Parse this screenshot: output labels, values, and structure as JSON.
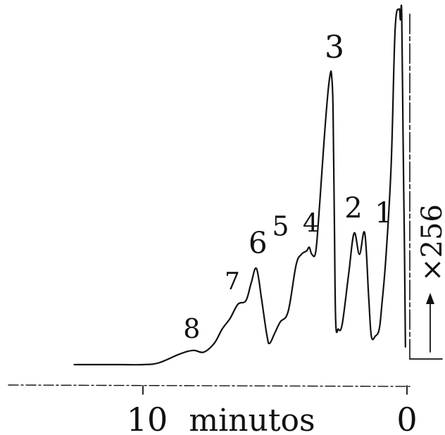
{
  "chart_data": {
    "type": "line",
    "xlabel": "minutos",
    "x_ticks": [
      {
        "value": 10,
        "label": "10"
      },
      {
        "value": 0,
        "label": "0"
      }
    ],
    "x_direction": "reversed",
    "sensitivity_label": "×256",
    "peaks": [
      {
        "label": "1",
        "x": 1.2,
        "y": 0.36
      },
      {
        "label": "2",
        "x": 1.6,
        "y": 0.37
      },
      {
        "label": "3",
        "x": 2.8,
        "y": 0.82
      },
      {
        "label": "4",
        "x": 3.7,
        "y": 0.33
      },
      {
        "label": "5",
        "x": 4.2,
        "y": 0.32
      },
      {
        "label": "6",
        "x": 5.7,
        "y": 0.27
      },
      {
        "label": "7",
        "x": 6.4,
        "y": 0.18
      },
      {
        "label": "8",
        "x": 8.1,
        "y": 0.04
      }
    ],
    "series": [
      {
        "x": [
          12.6,
          12.1,
          11.4,
          10.8,
          10.0,
          9.4,
          8.6,
          8.1,
          7.7,
          7.3,
          7.0,
          6.7,
          6.4,
          6.1,
          5.9,
          5.7,
          5.5,
          5.3,
          5.2,
          5.0,
          4.8,
          4.5,
          4.2,
          4.0,
          3.8,
          3.7,
          3.6,
          3.45,
          3.3,
          3.15,
          3.0,
          2.9,
          2.85,
          2.8,
          2.75,
          2.7,
          2.6,
          2.5,
          2.4,
          2.2,
          2.0,
          1.8,
          1.6,
          1.45,
          1.35,
          1.2,
          1.05,
          0.95,
          0.8,
          0.6,
          0.45,
          0.3,
          0.25,
          0.2,
          0.15,
          0.1,
          0.06
        ],
        "y": [
          0.0,
          0.0,
          0.0,
          0.0,
          0.0,
          0.005,
          0.03,
          0.04,
          0.035,
          0.06,
          0.1,
          0.13,
          0.17,
          0.18,
          0.23,
          0.27,
          0.18,
          0.08,
          0.06,
          0.09,
          0.12,
          0.15,
          0.28,
          0.31,
          0.32,
          0.33,
          0.31,
          0.32,
          0.46,
          0.62,
          0.76,
          0.82,
          0.81,
          0.72,
          0.4,
          0.12,
          0.1,
          0.1,
          0.14,
          0.26,
          0.37,
          0.31,
          0.37,
          0.19,
          0.08,
          0.08,
          0.1,
          0.17,
          0.3,
          0.56,
          0.94,
          1.0,
          0.97,
          0.99,
          0.65,
          0.35,
          0.05
        ]
      }
    ]
  }
}
